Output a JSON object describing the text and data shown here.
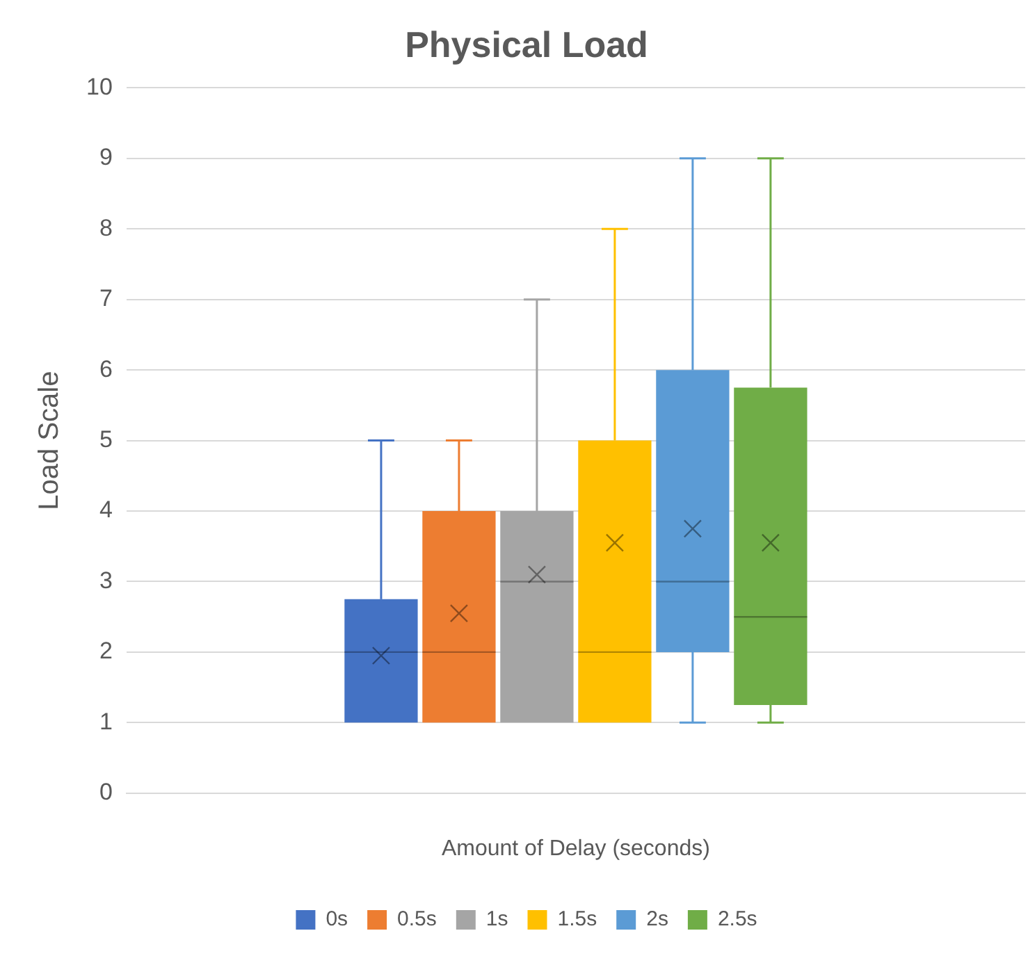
{
  "chart_data": {
    "type": "box",
    "title": "Physical Load",
    "xlabel": "Amount of Delay (seconds)",
    "ylabel": "Load Scale",
    "categories": [
      null
    ],
    "series": [
      {
        "name": "0s",
        "color": "#4472c4",
        "boxes": [
          {
            "low": 1,
            "q1": 1,
            "median": 2,
            "q3": 2.75,
            "high": 5,
            "mean": 1.95
          }
        ]
      },
      {
        "name": "0.5s",
        "color": "#ed7d31",
        "boxes": [
          {
            "low": 1,
            "q1": 1,
            "median": 2,
            "q3": 4,
            "high": 5,
            "mean": 2.55
          }
        ]
      },
      {
        "name": "1s",
        "color": "#a5a5a5",
        "boxes": [
          {
            "low": 1,
            "q1": 1,
            "median": 3,
            "q3": 4,
            "high": 7,
            "mean": 3.1
          }
        ]
      },
      {
        "name": "1.5s",
        "color": "#ffc000",
        "boxes": [
          {
            "low": 1,
            "q1": 1,
            "median": 2,
            "q3": 5,
            "high": 8,
            "mean": 3.55
          }
        ]
      },
      {
        "name": "2s",
        "color": "#5b9bd5",
        "boxes": [
          {
            "low": 1,
            "q1": 2,
            "median": 3,
            "q3": 6,
            "high": 9,
            "mean": 3.75
          }
        ]
      },
      {
        "name": "2.5s",
        "color": "#70ad47",
        "boxes": [
          {
            "low": 1,
            "q1": 1.25,
            "median": 2.5,
            "q3": 5.75,
            "high": 9,
            "mean": 3.55
          }
        ]
      }
    ],
    "ylim": [
      0,
      10
    ],
    "yticks": [
      0,
      1,
      2,
      3,
      4,
      5,
      6,
      7,
      8,
      9,
      10
    ],
    "grid": "y",
    "legend": "bottom"
  }
}
